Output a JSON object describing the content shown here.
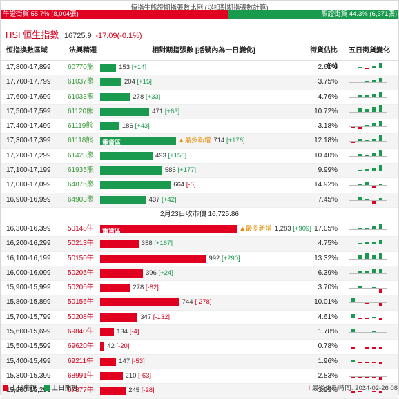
{
  "caption": "恒指牛熊證期指張數比例 (以相對期指張數計算)",
  "bull_ratio_label": "牛證街貨 55.7% (8,004張)",
  "bear_ratio_label": "熊證街貨 44.3% (6,371張)",
  "hsi": {
    "name": "HSI 恒生指數",
    "value": "16725.9",
    "change": "-17.09(-0.1%)"
  },
  "headers": {
    "range": "恒指換數區域",
    "code": "法興精選",
    "contracts": "相對期指張數 [括號內為一日變化]",
    "share": "街貨佔比(%)",
    "trend": "五日街貨變化"
  },
  "bear_rows": [
    {
      "range": "17,800-17,899",
      "code": "60770熊",
      "count": "153",
      "delta": "[+14]",
      "pct": 15,
      "share": "2.61%",
      "trend": [
        0,
        1,
        -1,
        2,
        6
      ]
    },
    {
      "range": "17,700-17,799",
      "code": "61037熊",
      "count": "204",
      "delta": "[+15]",
      "pct": 20,
      "share": "3.75%",
      "trend": [
        0,
        0,
        2,
        3,
        5
      ]
    },
    {
      "range": "17,600-17,699",
      "code": "61033熊",
      "count": "278",
      "delta": "[+33]",
      "pct": 28,
      "share": "4.76%",
      "trend": [
        0,
        3,
        2,
        4,
        6
      ]
    },
    {
      "range": "17,500-17,599",
      "code": "61120熊",
      "count": "471",
      "delta": "[+63]",
      "pct": 46,
      "share": "10.72%",
      "trend": [
        0,
        4,
        3,
        6,
        8
      ]
    },
    {
      "range": "17,400-17,499",
      "code": "61119熊",
      "count": "186",
      "delta": "[+43]",
      "pct": 18,
      "share": "3.18%",
      "trend": [
        -1,
        -2,
        2,
        4,
        6
      ]
    },
    {
      "range": "17,300-17,399",
      "code": "61118熊",
      "count": "714",
      "delta": "[+178]",
      "pct": 71,
      "share": "12.18%",
      "tag": "重貨區",
      "most": "▲最多新增",
      "trend": [
        -1,
        2,
        1,
        3,
        7
      ]
    },
    {
      "range": "17,200-17,299",
      "code": "61423熊",
      "count": "493",
      "delta": "[+156]",
      "pct": 49,
      "share": "10.40%",
      "trend": [
        0,
        2,
        1,
        4,
        7
      ]
    },
    {
      "range": "17,100-17,199",
      "code": "61935熊",
      "count": "585",
      "delta": "[+177]",
      "pct": 58,
      "share": "9.99%",
      "trend": [
        0,
        1,
        2,
        3,
        7
      ]
    },
    {
      "range": "17,000-17,099",
      "code": "64876熊",
      "count": "664",
      "delta": "[-5]",
      "pct": 66,
      "share": "14.92%",
      "trend": [
        0,
        2,
        4,
        -2,
        1
      ]
    },
    {
      "range": "16,900-16,999",
      "code": "64903熊",
      "count": "437",
      "delta": "[+42]",
      "pct": 43,
      "share": "7.45%",
      "trend": [
        0,
        3,
        1,
        -4,
        2
      ]
    }
  ],
  "mid_label": "2月23日收市價 16,725.86",
  "bull_rows": [
    {
      "range": "16,300-16,399",
      "code": "50148牛",
      "count": "1,283",
      "delta": "[+909]",
      "pct": 128,
      "share": "17.05%",
      "tag": "重貨區",
      "most": "▲最多新增",
      "trend": [
        0,
        1,
        2,
        3,
        7
      ]
    },
    {
      "range": "16,200-16,299",
      "code": "50213牛",
      "count": "358",
      "delta": "[+167]",
      "pct": 36,
      "share": "4.75%",
      "trend": [
        0,
        1,
        2,
        3,
        5
      ]
    },
    {
      "range": "16,100-16,199",
      "code": "50150牛",
      "count": "992",
      "delta": "[+290]",
      "pct": 99,
      "share": "13.32%",
      "trend": [
        0,
        4,
        6,
        5,
        7
      ]
    },
    {
      "range": "16,000-16,099",
      "code": "50205牛",
      "count": "396",
      "delta": "[+24]",
      "pct": 40,
      "share": "6.39%",
      "trend": [
        0,
        2,
        3,
        5,
        5
      ]
    },
    {
      "range": "15,900-15,999",
      "code": "50206牛",
      "count": "278",
      "delta": "[-82]",
      "pct": 28,
      "share": "3.70%",
      "trend": [
        0,
        3,
        0,
        1,
        -5
      ]
    },
    {
      "range": "15,800-15,899",
      "code": "50156牛",
      "count": "744",
      "delta": "[-278]",
      "pct": 74,
      "share": "10.01%",
      "trend": [
        5,
        1,
        -1,
        0,
        -4
      ]
    },
    {
      "range": "15,700-15,799",
      "code": "50208牛",
      "count": "347",
      "delta": "[-132]",
      "pct": 35,
      "share": "4.61%",
      "trend": [
        4,
        -1,
        -1,
        1,
        -3
      ]
    },
    {
      "range": "15,600-15,699",
      "code": "69840牛",
      "count": "134",
      "delta": "[-4]",
      "pct": 13,
      "share": "1.78%",
      "trend": [
        3,
        -1,
        -1,
        1,
        -1
      ]
    },
    {
      "range": "15,500-15,599",
      "code": "69620牛",
      "count": "42",
      "delta": "[-20]",
      "pct": 4,
      "share": "0.78%",
      "trend": [
        -1,
        0,
        -1,
        -1,
        -1
      ]
    },
    {
      "range": "15,400-15,499",
      "code": "69211牛",
      "count": "147",
      "delta": "[-53]",
      "pct": 15,
      "share": "1.96%",
      "trend": [
        2,
        -1,
        -1,
        -1,
        -2
      ]
    },
    {
      "range": "15,300-15,399",
      "code": "68991牛",
      "count": "210",
      "delta": "[-63]",
      "pct": 21,
      "share": "2.83%",
      "trend": [
        -2,
        -1,
        -1,
        -1,
        -3
      ]
    },
    {
      "range": "15,200-15,299",
      "code": "67877牛",
      "count": "245",
      "delta": "[-28]",
      "pct": 24,
      "share": "3.95%",
      "trend": [
        -2,
        -1,
        0,
        -1,
        -2
      ]
    }
  ],
  "legend": {
    "prev_bull": "上日牛證",
    "prev_bear": "上日熊證"
  },
  "update": {
    "prefix": "!",
    "text": "最後更新時間: 2024-02-26 08"
  }
}
